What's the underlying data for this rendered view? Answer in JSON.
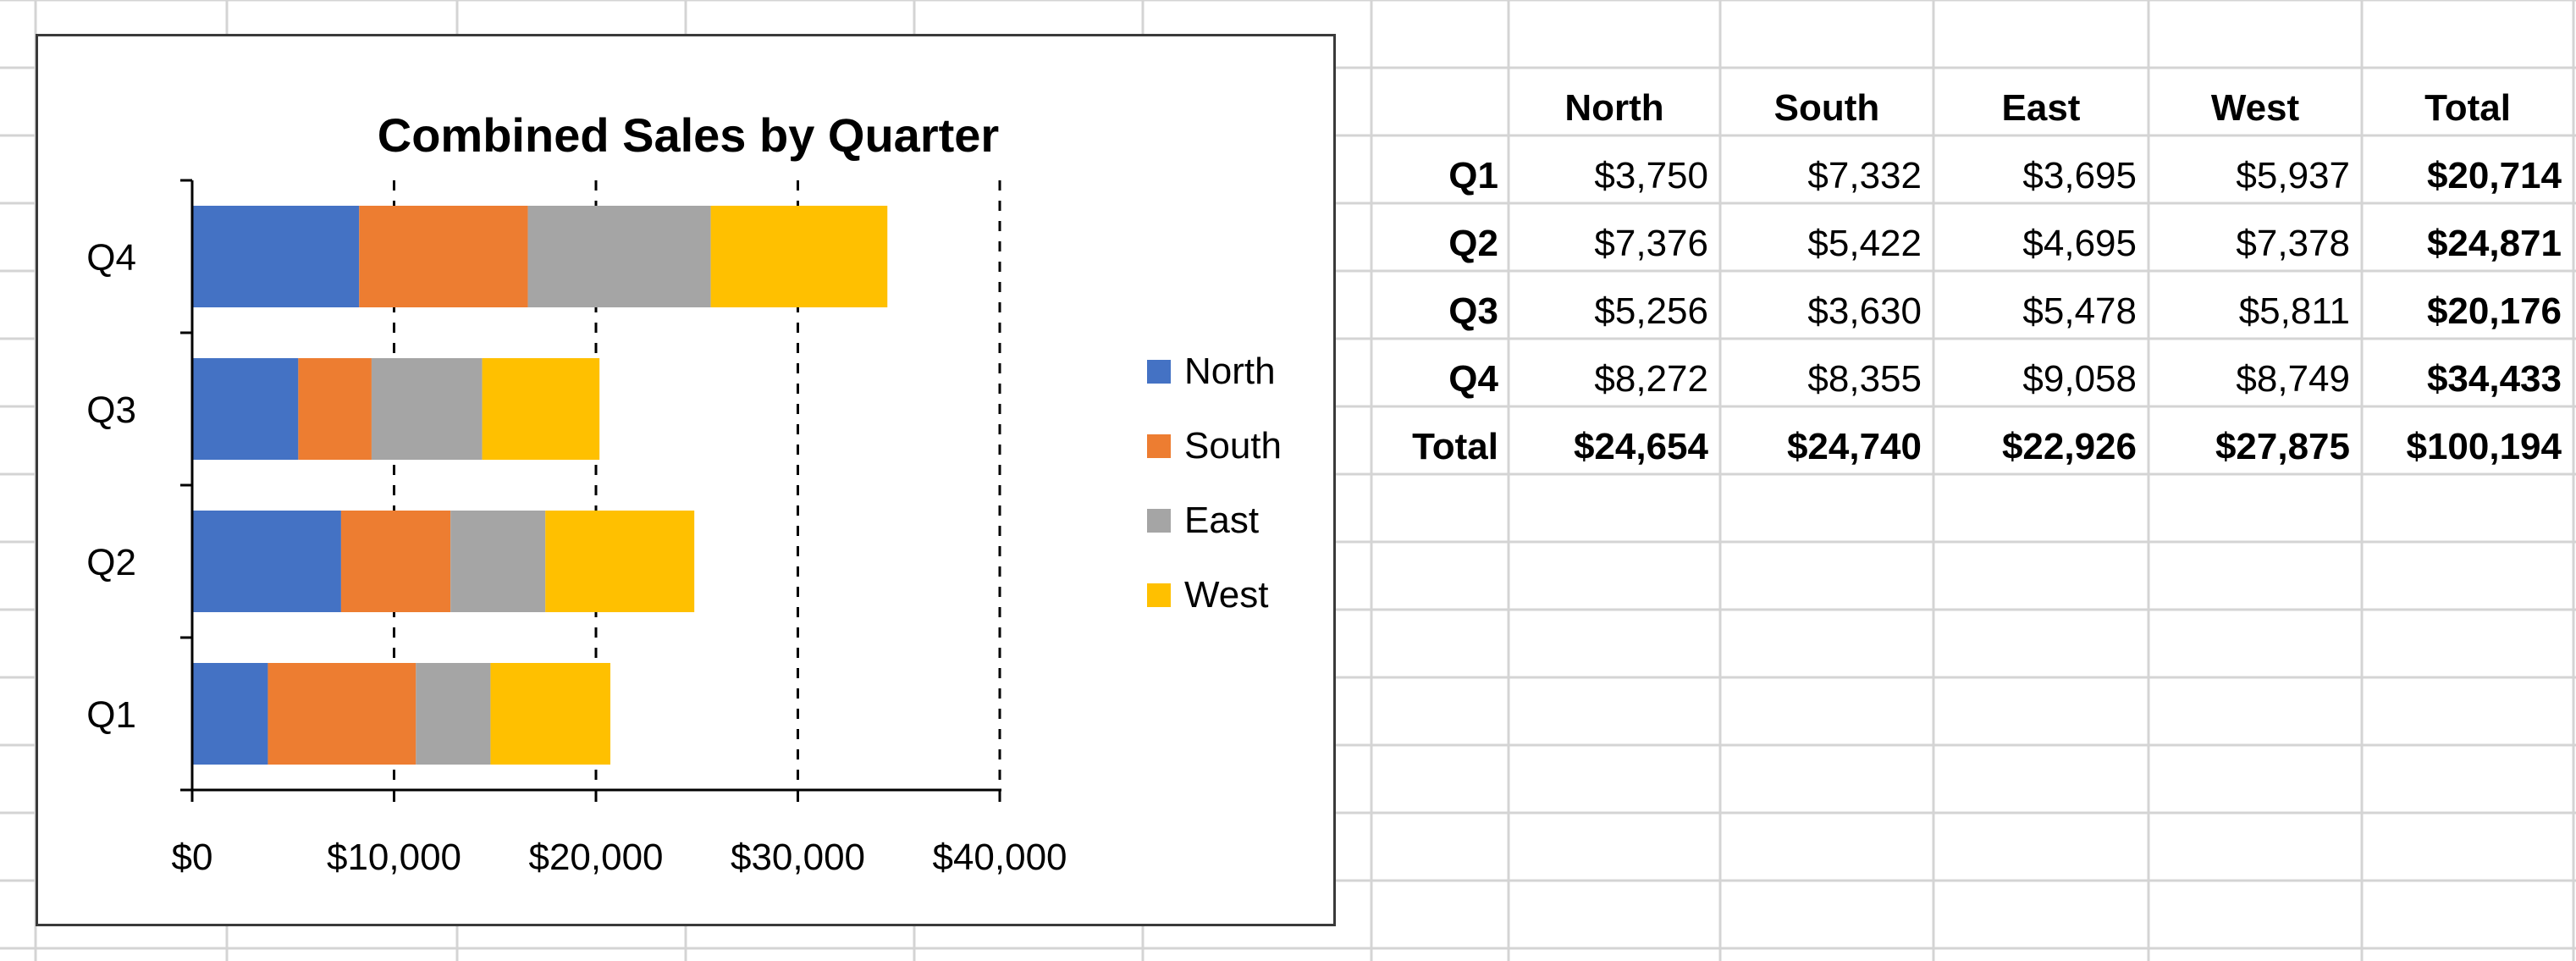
{
  "chart_data": {
    "type": "bar",
    "orientation": "horizontal",
    "stacked": true,
    "title": "Combined Sales by Quarter",
    "categories": [
      "Q1",
      "Q2",
      "Q3",
      "Q4"
    ],
    "series": [
      {
        "name": "North",
        "color": "#4472C4",
        "values": [
          3750,
          7376,
          5256,
          8272
        ]
      },
      {
        "name": "South",
        "color": "#ED7D31",
        "values": [
          7332,
          5422,
          3630,
          8355
        ]
      },
      {
        "name": "East",
        "color": "#A5A5A5",
        "values": [
          3695,
          4695,
          5478,
          9058
        ]
      },
      {
        "name": "West",
        "color": "#FFC000",
        "values": [
          5937,
          7378,
          5811,
          8749
        ]
      }
    ],
    "xlim": [
      0,
      40000
    ],
    "x_ticks": [
      "$0",
      "$10,000",
      "$20,000",
      "$30,000",
      "$40,000"
    ],
    "gridlines": "vertical dashed",
    "legend": "right"
  },
  "table": {
    "headers": [
      "",
      "North",
      "South",
      "East",
      "West",
      "Total"
    ],
    "rows": [
      {
        "label": "Q1",
        "cells": [
          "$3,750",
          "$7,332",
          "$3,695",
          "$5,937",
          "$20,714"
        ]
      },
      {
        "label": "Q2",
        "cells": [
          "$7,376",
          "$5,422",
          "$4,695",
          "$7,378",
          "$24,871"
        ]
      },
      {
        "label": "Q3",
        "cells": [
          "$5,256",
          "$3,630",
          "$5,478",
          "$5,811",
          "$20,176"
        ]
      },
      {
        "label": "Q4",
        "cells": [
          "$8,272",
          "$8,355",
          "$9,058",
          "$8,749",
          "$34,433"
        ]
      },
      {
        "label": "Total",
        "cells": [
          "$24,654",
          "$24,740",
          "$22,926",
          "$27,875",
          "$100,194"
        ]
      }
    ]
  },
  "colors": {
    "gridline": "#d4d4d4",
    "axis": "#000000"
  }
}
